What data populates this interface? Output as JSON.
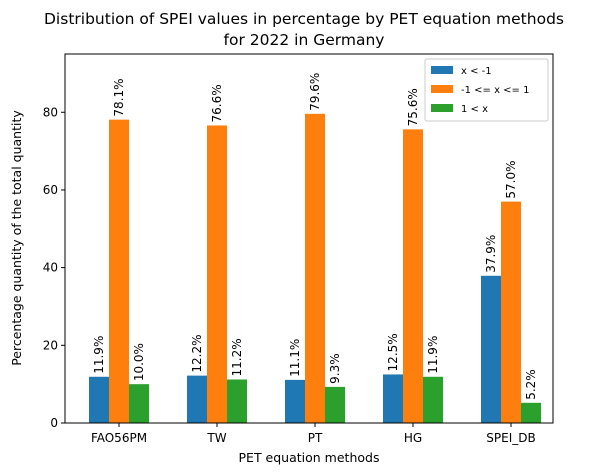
{
  "chart_data": {
    "type": "bar",
    "title_line1": "Distribution of SPEI values in percentage by PET equation methods",
    "title_line2": "for 2022 in Germany",
    "xlabel": "PET equation methods",
    "ylabel": "Percentage quantity of the total quantity",
    "categories": [
      "FAO56PM",
      "TW",
      "PT",
      "HG",
      "SPEI_DB"
    ],
    "series": [
      {
        "name": "x < -1",
        "color": "#1f77b4",
        "values": [
          11.9,
          12.2,
          11.1,
          12.5,
          37.9
        ]
      },
      {
        "name": "-1 <= x <= 1",
        "color": "#ff7f0e",
        "values": [
          78.1,
          76.6,
          79.6,
          75.6,
          57.0
        ]
      },
      {
        "name": "1 < x",
        "color": "#2ca02c",
        "values": [
          10.0,
          11.2,
          9.3,
          11.9,
          5.2
        ]
      }
    ],
    "value_labels": [
      [
        "11.9%",
        "12.2%",
        "11.1%",
        "12.5%",
        "37.9%"
      ],
      [
        "78.1%",
        "76.6%",
        "79.6%",
        "75.6%",
        "57.0%"
      ],
      [
        "10.0%",
        "11.2%",
        "9.3%",
        "11.9%",
        "5.2%"
      ]
    ],
    "ylim": [
      0,
      95
    ],
    "yticks": [
      0,
      20,
      40,
      60,
      80
    ],
    "grid": false,
    "legend_position": "top-right"
  }
}
